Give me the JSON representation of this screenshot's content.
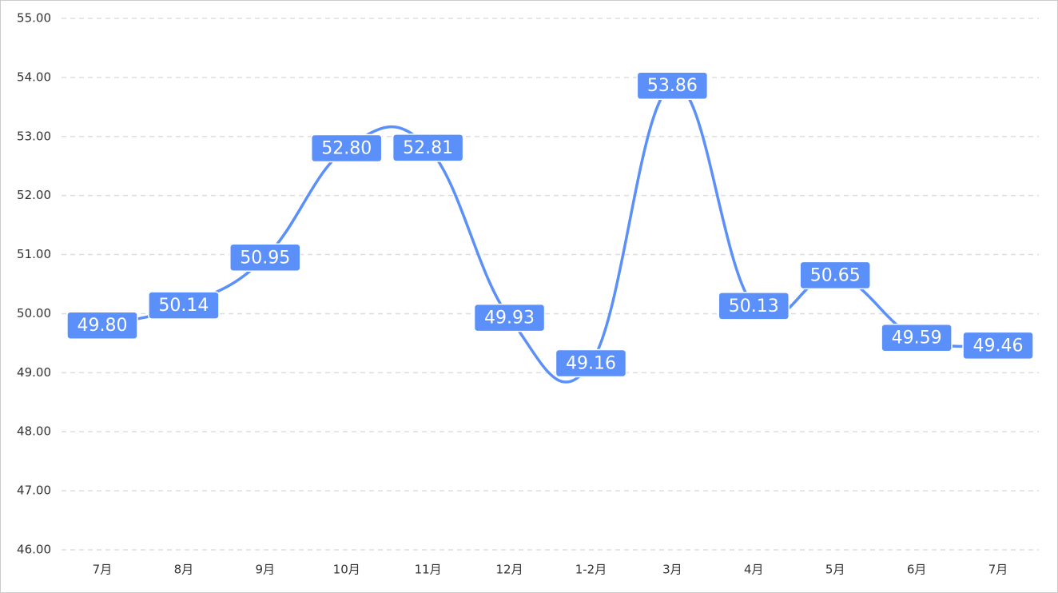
{
  "chart_data": {
    "type": "line",
    "categories": [
      "7月",
      "8月",
      "9月",
      "10月",
      "11月",
      "12月",
      "1-2月",
      "3月",
      "4月",
      "5月",
      "6月",
      "7月"
    ],
    "values": [
      49.8,
      50.14,
      50.95,
      52.8,
      52.81,
      49.93,
      49.16,
      53.86,
      50.13,
      50.65,
      49.59,
      49.46
    ],
    "value_labels": [
      "49.80",
      "50.14",
      "50.95",
      "52.80",
      "52.81",
      "49.93",
      "49.16",
      "53.86",
      "50.13",
      "50.65",
      "49.59",
      "49.46"
    ],
    "color": "#5b8ff9",
    "ylim": [
      46,
      55
    ],
    "yticks": [
      {
        "value": 46,
        "label": "46.00"
      },
      {
        "value": 47,
        "label": "47.00"
      },
      {
        "value": 48,
        "label": "48.00"
      },
      {
        "value": 49,
        "label": "49.00"
      },
      {
        "value": 50,
        "label": "50.00"
      },
      {
        "value": 51,
        "label": "51.00"
      },
      {
        "value": 52,
        "label": "52.00"
      },
      {
        "value": 53,
        "label": "53.00"
      },
      {
        "value": 54,
        "label": "54.00"
      },
      {
        "value": 55,
        "label": "55.00"
      }
    ],
    "grid": true,
    "smooth": true
  }
}
